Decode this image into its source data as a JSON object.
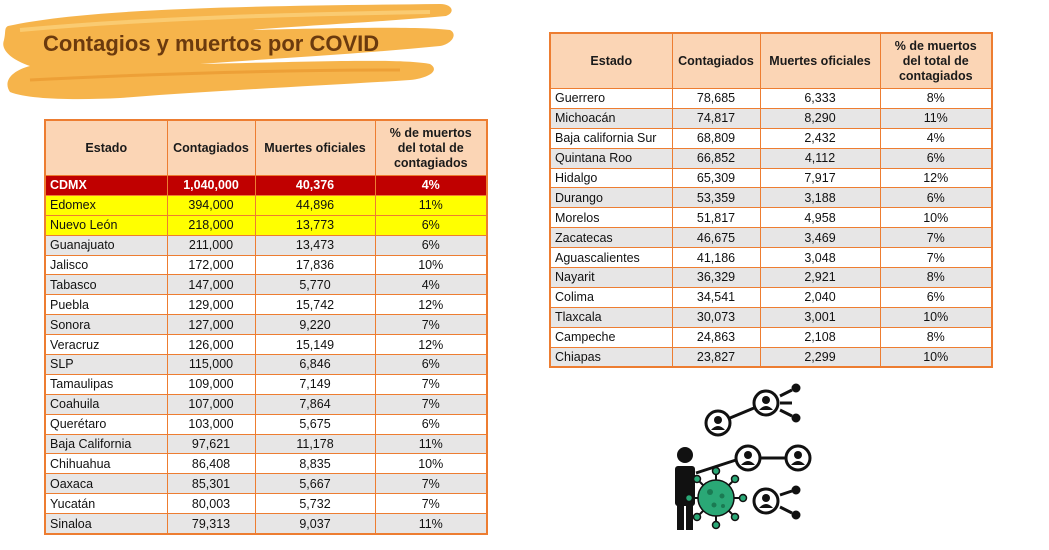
{
  "title": "Contagios y muertos por COVID",
  "colors": {
    "header_fill": "#fbd5b5",
    "border": "#ed7d31",
    "row_alt": "#e7e6e6",
    "highlight_red": "#c00000",
    "highlight_yellow": "#ffff00",
    "title_text": "#6b3a0e",
    "brush": "#f6b041",
    "virus_green": "#2aa876"
  },
  "headers": {
    "estado": "Estado",
    "contagiados": "Contagiados",
    "muertes": "Muertes oficiales",
    "porcentaje": "% de muertos del total de contagiados"
  },
  "left_rows": [
    {
      "estado": "CDMX",
      "contagiados": "1,040,000",
      "muertes": "40,376",
      "pct": "4%",
      "hl": "red"
    },
    {
      "estado": "Edomex",
      "contagiados": "394,000",
      "muertes": "44,896",
      "pct": "11%",
      "hl": "yellow"
    },
    {
      "estado": "Nuevo León",
      "contagiados": "218,000",
      "muertes": "13,773",
      "pct": "6%",
      "hl": "yellow"
    },
    {
      "estado": "Guanajuato",
      "contagiados": "211,000",
      "muertes": "13,473",
      "pct": "6%"
    },
    {
      "estado": "Jalisco",
      "contagiados": "172,000",
      "muertes": "17,836",
      "pct": "10%"
    },
    {
      "estado": "Tabasco",
      "contagiados": "147,000",
      "muertes": "5,770",
      "pct": "4%"
    },
    {
      "estado": "Puebla",
      "contagiados": "129,000",
      "muertes": "15,742",
      "pct": "12%"
    },
    {
      "estado": "Sonora",
      "contagiados": "127,000",
      "muertes": "9,220",
      "pct": "7%"
    },
    {
      "estado": "Veracruz",
      "contagiados": "126,000",
      "muertes": "15,149",
      "pct": "12%"
    },
    {
      "estado": "SLP",
      "contagiados": "115,000",
      "muertes": "6,846",
      "pct": "6%"
    },
    {
      "estado": "Tamaulipas",
      "contagiados": "109,000",
      "muertes": "7,149",
      "pct": "7%"
    },
    {
      "estado": "Coahuila",
      "contagiados": "107,000",
      "muertes": "7,864",
      "pct": "7%"
    },
    {
      "estado": "Querétaro",
      "contagiados": "103,000",
      "muertes": "5,675",
      "pct": "6%"
    },
    {
      "estado": "Baja California",
      "contagiados": "97,621",
      "muertes": "11,178",
      "pct": "11%"
    },
    {
      "estado": "Chihuahua",
      "contagiados": "86,408",
      "muertes": "8,835",
      "pct": "10%"
    },
    {
      "estado": "Oaxaca",
      "contagiados": "85,301",
      "muertes": "5,667",
      "pct": "7%"
    },
    {
      "estado": "Yucatán",
      "contagiados": "80,003",
      "muertes": "5,732",
      "pct": "7%"
    },
    {
      "estado": "Sinaloa",
      "contagiados": "79,313",
      "muertes": "9,037",
      "pct": "11%"
    }
  ],
  "right_rows": [
    {
      "estado": "Guerrero",
      "contagiados": "78,685",
      "muertes": "6,333",
      "pct": "8%"
    },
    {
      "estado": "Michoacán",
      "contagiados": "74,817",
      "muertes": "8,290",
      "pct": "11%"
    },
    {
      "estado": "Baja california Sur",
      "contagiados": "68,809",
      "muertes": "2,432",
      "pct": "4%"
    },
    {
      "estado": "Quintana Roo",
      "contagiados": "66,852",
      "muertes": "4,112",
      "pct": "6%"
    },
    {
      "estado": "Hidalgo",
      "contagiados": "65,309",
      "muertes": "7,917",
      "pct": "12%"
    },
    {
      "estado": "Durango",
      "contagiados": "53,359",
      "muertes": "3,188",
      "pct": "6%"
    },
    {
      "estado": "Morelos",
      "contagiados": "51,817",
      "muertes": "4,958",
      "pct": "10%"
    },
    {
      "estado": "Zacatecas",
      "contagiados": "46,675",
      "muertes": "3,469",
      "pct": "7%"
    },
    {
      "estado": "Aguascalientes",
      "contagiados": "41,186",
      "muertes": "3,048",
      "pct": "7%"
    },
    {
      "estado": "Nayarit",
      "contagiados": "36,329",
      "muertes": "2,921",
      "pct": "8%"
    },
    {
      "estado": "Colima",
      "contagiados": "34,541",
      "muertes": "2,040",
      "pct": "6%"
    },
    {
      "estado": "Tlaxcala",
      "contagiados": "30,073",
      "muertes": "3,001",
      "pct": "10%"
    },
    {
      "estado": "Campeche",
      "contagiados": "24,863",
      "muertes": "2,108",
      "pct": "8%"
    },
    {
      "estado": "Chiapas",
      "contagiados": "23,827",
      "muertes": "2,299",
      "pct": "10%"
    }
  ],
  "illustration_icon": "virus-spread-people-icon"
}
